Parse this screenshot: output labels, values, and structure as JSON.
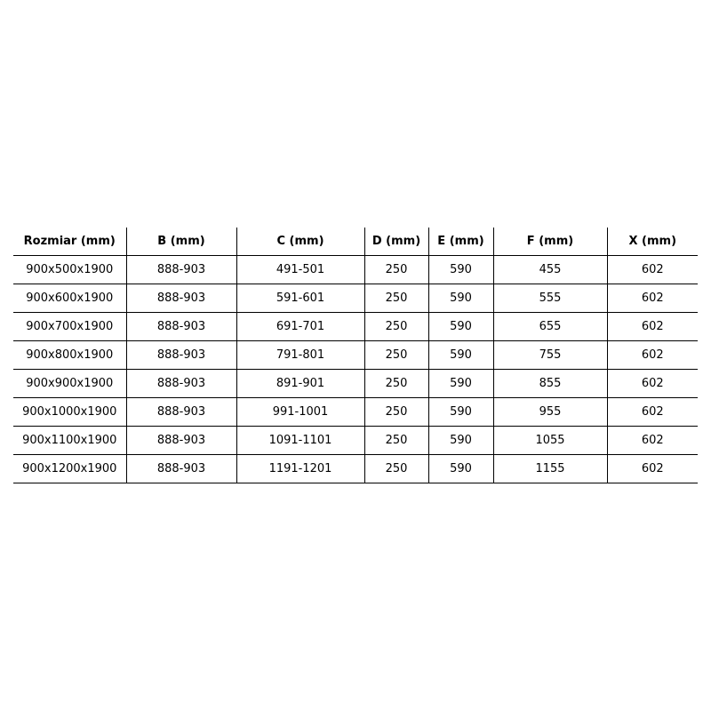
{
  "headers": [
    "Rozmiar (mm)",
    "B (mm)",
    "C (mm)",
    "D (mm)",
    "E (mm)",
    "F (mm)",
    "X (mm)"
  ],
  "rows": [
    [
      "900x500x1900",
      "888-903",
      "491-501",
      "250",
      "590",
      "455",
      "602"
    ],
    [
      "900x600x1900",
      "888-903",
      "591-601",
      "250",
      "590",
      "555",
      "602"
    ],
    [
      "900x700x1900",
      "888-903",
      "691-701",
      "250",
      "590",
      "655",
      "602"
    ],
    [
      "900x800x1900",
      "888-903",
      "791-801",
      "250",
      "590",
      "755",
      "602"
    ],
    [
      "900x900x1900",
      "888-903",
      "891-901",
      "250",
      "590",
      "855",
      "602"
    ],
    [
      "900x1000x1900",
      "888-903",
      "991-1001",
      "250",
      "590",
      "955",
      "602"
    ],
    [
      "900x1100x1900",
      "888-903",
      "1091-1101",
      "250",
      "590",
      "1055",
      "602"
    ],
    [
      "900x1200x1900",
      "888-903",
      "1191-1201",
      "250",
      "590",
      "1155",
      "602"
    ]
  ]
}
